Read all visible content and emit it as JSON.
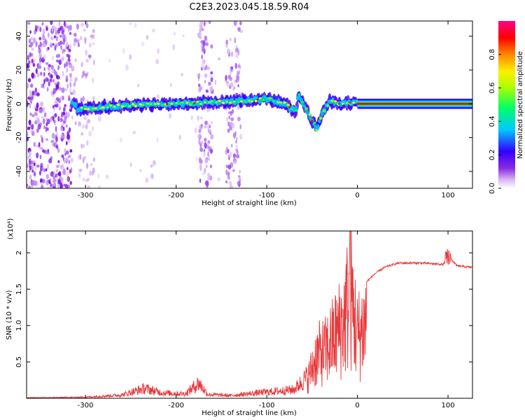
{
  "title": "C2E3.2023.045.18.59.R04",
  "colors": {
    "signal": "#e8383a",
    "axes": "#000000"
  },
  "chart_data": [
    {
      "type": "heatmap",
      "title": "C2E3.2023.045.18.59.R04",
      "xlabel": "Height of straight line (km)",
      "ylabel": "Frequency (Hz)",
      "xlim": [
        -365,
        127
      ],
      "ylim": [
        -50,
        49
      ],
      "xticks": [
        -300,
        -200,
        -100,
        0,
        100
      ],
      "yticks": [
        -40,
        -20,
        0,
        20,
        40
      ],
      "colorbar": {
        "label": "Normalized spectral amplitude",
        "range": [
          0,
          1
        ],
        "ticks": [
          0.0,
          0.2,
          0.4,
          0.6,
          0.8
        ],
        "colormap": [
          "#ffffff",
          "#d9b8f2",
          "#8a2be2",
          "#3300ff",
          "#00c8ff",
          "#00ff66",
          "#aaff00",
          "#ffee00",
          "#ff8800",
          "#ff0000",
          "#ff0088"
        ]
      },
      "signal_track": [
        {
          "x": -310,
          "freq": -3
        },
        {
          "x": -260,
          "freq": -1
        },
        {
          "x": -200,
          "freq": 0
        },
        {
          "x": -150,
          "freq": 1
        },
        {
          "x": -120,
          "freq": 2
        },
        {
          "x": -100,
          "freq": 3
        },
        {
          "x": -80,
          "freq": 0
        },
        {
          "x": -68,
          "freq": -5
        },
        {
          "x": -65,
          "freq": 6
        },
        {
          "x": -50,
          "freq": -10
        },
        {
          "x": -45,
          "freq": -15
        },
        {
          "x": -38,
          "freq": -5
        },
        {
          "x": -30,
          "freq": 2
        },
        {
          "x": -20,
          "freq": 0
        },
        {
          "x": 0,
          "freq": 1
        },
        {
          "x": 127,
          "freq": 0
        }
      ]
    },
    {
      "type": "line",
      "xlabel": "Height of straight line (km)",
      "ylabel": "SNR (10 * v/v)",
      "y_multiplier": "(x10⁴)",
      "xlim": [
        -365,
        127
      ],
      "ylim": [
        0,
        2.3
      ],
      "xticks": [
        -300,
        -200,
        -100,
        0,
        100
      ],
      "yticks": [
        0.5,
        1.0,
        1.5,
        2.0
      ],
      "series": [
        {
          "values": [
            {
              "x": -365,
              "y": 0.01
            },
            {
              "x": -300,
              "y": 0.02
            },
            {
              "x": -260,
              "y": 0.06
            },
            {
              "x": -235,
              "y": 0.18
            },
            {
              "x": -215,
              "y": 0.1
            },
            {
              "x": -190,
              "y": 0.08
            },
            {
              "x": -175,
              "y": 0.28
            },
            {
              "x": -165,
              "y": 0.07
            },
            {
              "x": -140,
              "y": 0.05
            },
            {
              "x": -110,
              "y": 0.1
            },
            {
              "x": -95,
              "y": 0.12
            },
            {
              "x": -70,
              "y": 0.16
            },
            {
              "x": -55,
              "y": 0.4
            },
            {
              "x": -45,
              "y": 0.9
            },
            {
              "x": -35,
              "y": 1.0
            },
            {
              "x": -25,
              "y": 1.3
            },
            {
              "x": -15,
              "y": 1.6
            },
            {
              "x": -8,
              "y": 2.25
            },
            {
              "x": 0,
              "y": 1.3
            },
            {
              "x": 10,
              "y": 1.6
            },
            {
              "x": 20,
              "y": 1.72
            },
            {
              "x": 30,
              "y": 1.8
            },
            {
              "x": 45,
              "y": 1.86
            },
            {
              "x": 70,
              "y": 1.86
            },
            {
              "x": 95,
              "y": 1.84
            },
            {
              "x": 100,
              "y": 1.96
            },
            {
              "x": 110,
              "y": 1.82
            },
            {
              "x": 127,
              "y": 1.8
            }
          ]
        }
      ]
    }
  ]
}
